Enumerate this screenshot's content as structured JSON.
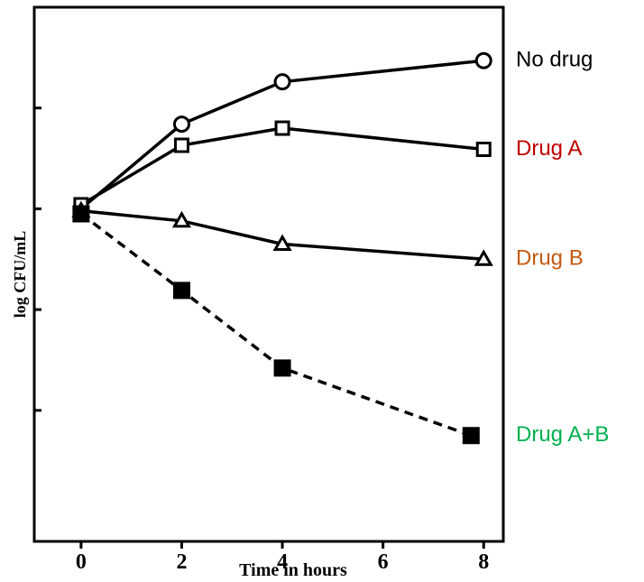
{
  "chart_data": {
    "type": "line",
    "xlabel": "Time in hours",
    "ylabel": "log CFU/mL",
    "xlim": [
      -0.93,
      8.39
    ],
    "xticks": [
      0,
      2,
      4,
      6,
      8
    ],
    "ylim": [
      2.7,
      8
    ],
    "yticks": [
      4,
      5,
      6,
      7
    ],
    "series": [
      {
        "name": "No drug",
        "color": "#000000",
        "label_color": "#000000",
        "marker": "open-circle",
        "dash": false,
        "x": [
          0,
          2,
          4,
          8
        ],
        "values": [
          6.0,
          6.84,
          7.26,
          7.47
        ]
      },
      {
        "name": "Drug A",
        "color": "#000000",
        "label_color": "#c00000",
        "marker": "open-square",
        "dash": false,
        "x": [
          0,
          2,
          4,
          8
        ],
        "values": [
          6.04,
          6.63,
          6.8,
          6.59
        ]
      },
      {
        "name": "Drug B",
        "color": "#000000",
        "label_color": "#c55a11",
        "marker": "open-triangle",
        "dash": false,
        "x": [
          0,
          2,
          4,
          8
        ],
        "values": [
          5.98,
          5.88,
          5.65,
          5.5
        ]
      },
      {
        "name": "Drug A+B",
        "color": "#000000",
        "label_color": "#00b050",
        "marker": "filled-square",
        "dash": true,
        "x": [
          0,
          2,
          4,
          7.75
        ],
        "values": [
          5.95,
          5.19,
          4.42,
          3.75
        ]
      }
    ]
  }
}
